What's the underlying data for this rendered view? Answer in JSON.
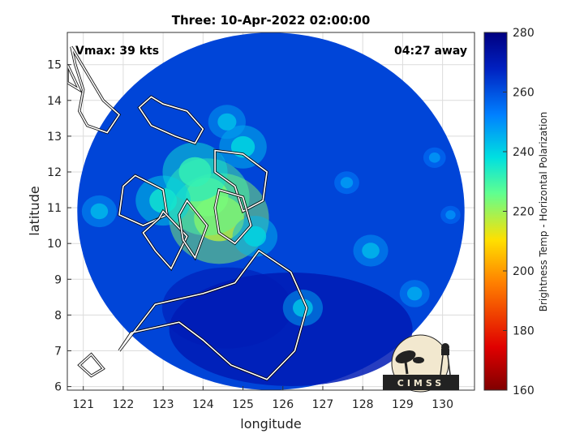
{
  "chart_data": {
    "type": "heatmap",
    "title": "Three: 10-Apr-2022 02:00:00",
    "xlabel": "longitude",
    "ylabel": "latitude",
    "xlim": [
      120.6,
      130.8
    ],
    "ylim": [
      5.9,
      15.9
    ],
    "xticks": [
      "121",
      "122",
      "123",
      "124",
      "125",
      "126",
      "127",
      "128",
      "129",
      "130"
    ],
    "yticks": [
      "6",
      "7",
      "8",
      "9",
      "10",
      "11",
      "12",
      "13",
      "14",
      "15"
    ],
    "grid": true,
    "colorbar": {
      "label": "Brightness Temp - Horizontal Polarization",
      "min": 160,
      "max": 280,
      "ticks": [
        "160",
        "180",
        "200",
        "220",
        "240",
        "260",
        "280"
      ],
      "colormap": "jet"
    },
    "annotations": {
      "vmax": "Vmax: 39 kts",
      "distance": "04:27 away"
    },
    "swath": {
      "center_lon": 125.7,
      "center_lat": 10.9,
      "radius_deg": 4.85
    },
    "cold_cores": [
      {
        "lon": 124.4,
        "lat": 10.7,
        "value": 222
      },
      {
        "lon": 124.1,
        "lat": 11.3,
        "value": 228
      },
      {
        "lon": 123.8,
        "lat": 12.0,
        "value": 236
      },
      {
        "lon": 123.0,
        "lat": 11.2,
        "value": 240
      },
      {
        "lon": 125.0,
        "lat": 12.7,
        "value": 243
      },
      {
        "lon": 124.6,
        "lat": 13.4,
        "value": 247
      },
      {
        "lon": 125.3,
        "lat": 10.2,
        "value": 244
      },
      {
        "lon": 126.5,
        "lat": 8.2,
        "value": 246
      },
      {
        "lon": 128.2,
        "lat": 9.8,
        "value": 248
      },
      {
        "lon": 129.3,
        "lat": 8.6,
        "value": 250
      },
      {
        "lon": 127.6,
        "lat": 11.7,
        "value": 252
      },
      {
        "lon": 129.8,
        "lat": 12.4,
        "value": 253
      },
      {
        "lon": 121.4,
        "lat": 10.9,
        "value": 248
      },
      {
        "lon": 130.2,
        "lat": 10.8,
        "value": 254
      }
    ],
    "background_value": 262,
    "south_value": 270
  },
  "logo": {
    "text": "CIMSS"
  }
}
